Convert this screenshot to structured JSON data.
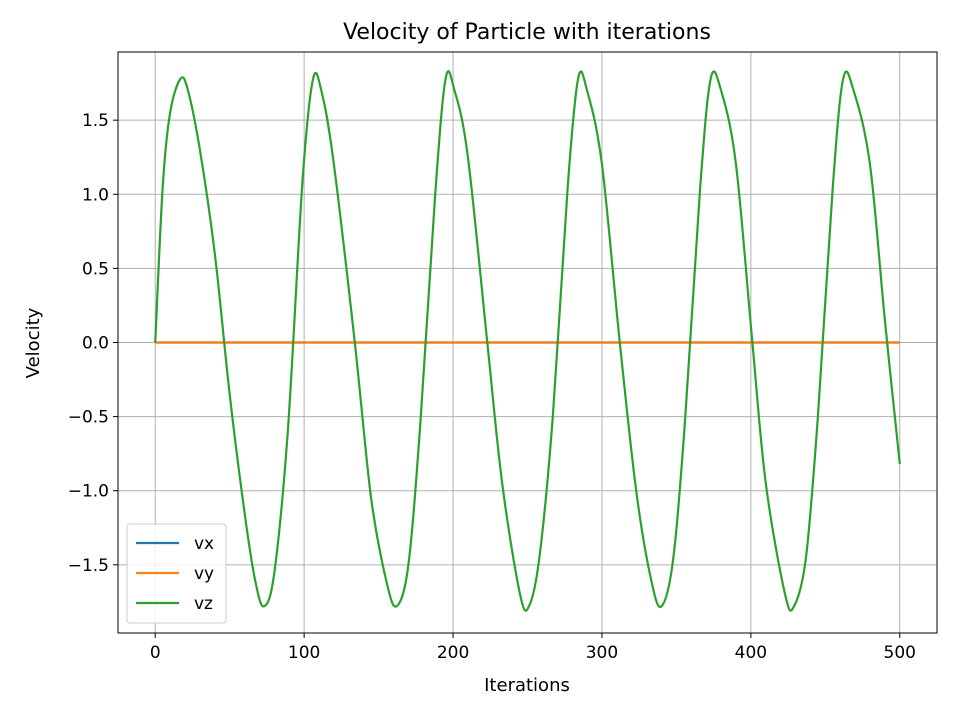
{
  "chart_data": {
    "type": "line",
    "title": "Velocity of Particle with iterations",
    "xlabel": "Iterations",
    "ylabel": "Velocity",
    "xlim": [
      -25,
      525
    ],
    "ylim": [
      -1.96,
      1.96
    ],
    "xticks": [
      0,
      100,
      200,
      300,
      400,
      500
    ],
    "yticks": [
      -1.5,
      -1.0,
      -0.5,
      0.0,
      0.5,
      1.0,
      1.5
    ],
    "xtick_labels": [
      "0",
      "100",
      "200",
      "300",
      "400",
      "500"
    ],
    "ytick_labels": [
      "−1.5",
      "−1.0",
      "−0.5",
      "0.0",
      "0.5",
      "1.0",
      "1.5"
    ],
    "grid": true,
    "legend_position": "lower-left",
    "series": [
      {
        "name": "vx",
        "color": "#1f77b4",
        "x": [
          0,
          500
        ],
        "y": [
          0,
          0
        ]
      },
      {
        "name": "vy",
        "color": "#ff7f0e",
        "x": [
          0,
          500
        ],
        "y": [
          0,
          0
        ]
      },
      {
        "name": "vz",
        "color": "#2ca02c",
        "x": [
          0,
          5,
          10,
          17,
          22,
          30,
          40,
          50,
          60,
          67,
          73,
          80,
          89,
          99,
          106,
          112,
          120,
          134,
          145,
          155,
          162,
          170,
          178,
          188,
          195,
          201,
          210,
          223,
          233,
          245,
          251,
          258,
          267,
          277,
          284,
          290,
          300,
          312,
          323,
          333,
          340,
          348,
          356,
          366,
          373,
          380,
          390,
          401,
          410,
          423,
          429,
          437,
          445,
          455,
          462,
          469,
          480,
          490,
          500
        ],
        "y": [
          0.0,
          1.05,
          1.55,
          1.78,
          1.7,
          1.3,
          0.6,
          -0.35,
          -1.15,
          -1.6,
          -1.78,
          -1.55,
          -0.6,
          1.1,
          1.78,
          1.68,
          1.2,
          0.0,
          -1.05,
          -1.6,
          -1.78,
          -1.5,
          -0.55,
          1.0,
          1.78,
          1.7,
          1.25,
          0.0,
          -0.95,
          -1.7,
          -1.78,
          -1.45,
          -0.5,
          1.05,
          1.78,
          1.7,
          1.2,
          0.0,
          -1.0,
          -1.6,
          -1.78,
          -1.45,
          -0.5,
          1.05,
          1.78,
          1.7,
          1.2,
          0.0,
          -0.95,
          -1.7,
          -1.78,
          -1.45,
          -0.5,
          1.05,
          1.78,
          1.7,
          1.2,
          0.15,
          -0.82
        ]
      }
    ]
  }
}
